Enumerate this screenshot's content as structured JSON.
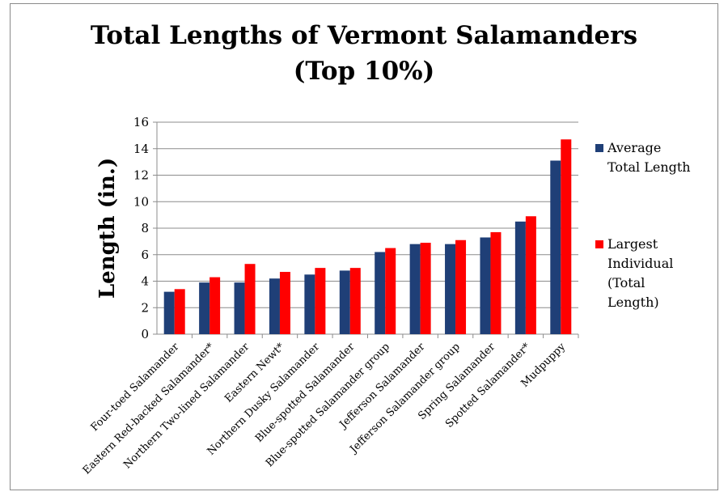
{
  "chart_data": {
    "type": "bar",
    "title_lines": [
      "Total Lengths of Vermont Salamanders",
      "(Top 10%)"
    ],
    "ylabel": "Length (in.)",
    "xlabel": "",
    "ylim": [
      0,
      16
    ],
    "yticks": [
      0,
      2,
      4,
      6,
      8,
      10,
      12,
      14,
      16
    ],
    "grid": true,
    "legend_position": "right",
    "categories": [
      "Four-toed Salamander",
      "Eastern Red-backed Salamander*",
      "Northern Two-lined Salamander",
      "Eastern Newt*",
      "Northern Dusky Salamander",
      "Blue-spotted Salamander",
      "Blue-spotted Salamander group",
      "Jefferson Salamander",
      "Jefferson Salamander group",
      "Spring Salamander",
      "Spotted Salamander*",
      "Mudpuppy"
    ],
    "series": [
      {
        "name_lines": [
          "Average",
          "Total Length"
        ],
        "color": "#1f3f77",
        "values": [
          3.2,
          3.9,
          3.9,
          4.2,
          4.5,
          4.8,
          6.2,
          6.8,
          6.8,
          7.3,
          8.5,
          13.1
        ]
      },
      {
        "name_lines": [
          "Largest",
          "Individual",
          "(Total",
          "Length)"
        ],
        "color": "#ff0000",
        "values": [
          3.4,
          4.3,
          5.3,
          4.7,
          5.0,
          5.0,
          6.5,
          6.9,
          7.1,
          7.7,
          8.9,
          14.7
        ]
      }
    ]
  }
}
